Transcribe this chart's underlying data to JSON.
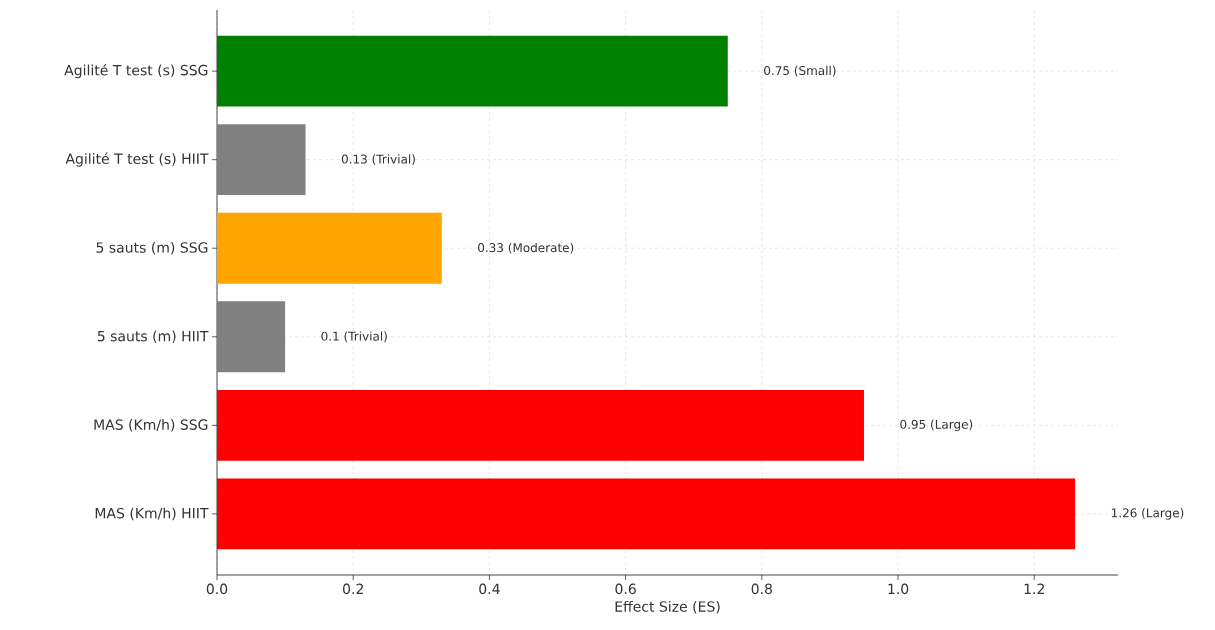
{
  "chart_data": {
    "type": "bar",
    "orientation": "horizontal",
    "xlabel": "Effect Size (ES)",
    "categories": [
      "Agilité T test (s) SSG",
      "Agilité T test (s) HIIT",
      "5 sauts (m) SSG",
      "5 sauts (m) HIIT",
      "MAS (Km/h) SSG",
      "MAS (Km/h) HIIT"
    ],
    "values": [
      0.75,
      0.13,
      0.33,
      0.1,
      0.95,
      1.26
    ],
    "colors": [
      "#008000",
      "#808080",
      "#ffa500",
      "#808080",
      "#ff0000",
      "#ff0000"
    ],
    "value_labels": [
      "0.75 (Small)",
      "0.13 (Trivial)",
      "0.33 (Moderate)",
      "0.1 (Trivial)",
      "0.95 (Large)",
      "1.26 (Large)"
    ],
    "xlim": [
      0,
      1.323
    ],
    "xticks": [
      {
        "value": 0,
        "label": "0.0"
      },
      {
        "value": 0.2,
        "label": "0.2"
      },
      {
        "value": 0.4,
        "label": "0.4"
      },
      {
        "value": 0.6,
        "label": "0.6"
      },
      {
        "value": 0.8,
        "label": "0.8"
      },
      {
        "value": 1.0,
        "label": "1.0"
      },
      {
        "value": 1.2,
        "label": "1.2"
      }
    ],
    "grid": true
  }
}
